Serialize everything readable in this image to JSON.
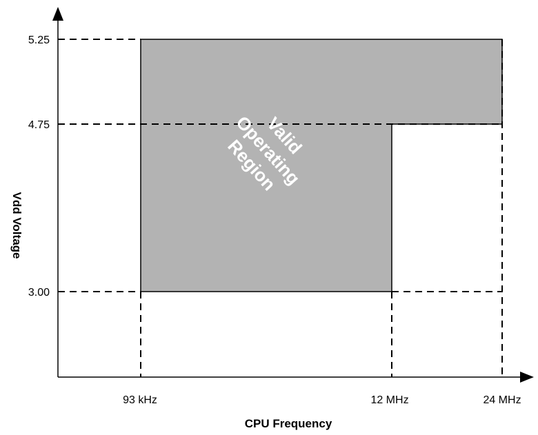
{
  "chart_data": {
    "type": "area",
    "xlabel": "CPU Frequency",
    "ylabel": "Vdd Voltage",
    "x_ticks": [
      "93 kHz",
      "12 MHz",
      "24 MHz"
    ],
    "y_ticks": [
      "3.00",
      "4.75",
      "5.25"
    ],
    "regions": [
      {
        "name": "Valid Operating Region",
        "label_lines": [
          "Valid",
          "Operating",
          "Region"
        ],
        "color": "#b3b3b3",
        "x_range": [
          "93 kHz",
          "12 MHz"
        ],
        "y_range": [
          3.0,
          5.25
        ]
      },
      {
        "name": "Valid Operating Region",
        "color": "#b3b3b3",
        "x_range": [
          "12 MHz",
          "24 MHz"
        ],
        "y_range": [
          4.75,
          5.25
        ]
      }
    ],
    "gridlines": "dashed at tick values",
    "legend": "none"
  }
}
